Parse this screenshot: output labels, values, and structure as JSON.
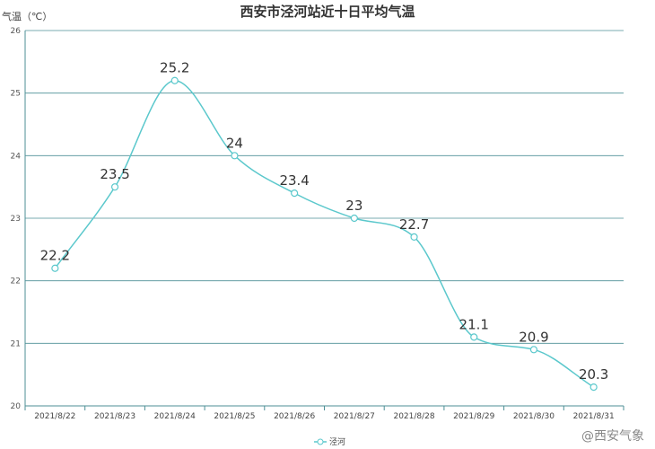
{
  "chart_data": {
    "type": "line",
    "title": "西安市泾河站近十日平均气温",
    "ylabel": "气温（℃）",
    "xlabel": "",
    "categories": [
      "2021/8/22",
      "2021/8/23",
      "2021/8/24",
      "2021/8/25",
      "2021/8/26",
      "2021/8/27",
      "2021/8/28",
      "2021/8/29",
      "2021/8/30",
      "2021/8/31"
    ],
    "series": [
      {
        "name": "泾河",
        "values": [
          22.2,
          23.5,
          25.2,
          24,
          23.4,
          23,
          22.7,
          21.1,
          20.9,
          20.3
        ]
      }
    ],
    "data_labels": [
      "22.2",
      "23.5",
      "25.2",
      "24",
      "23.4",
      "23",
      "22.7",
      "21.1",
      "20.9",
      "20.3"
    ],
    "ylim": [
      20,
      26
    ],
    "yticks": [
      20,
      21,
      22,
      23,
      24,
      25,
      26
    ],
    "grid": true,
    "legend": "bottom-center",
    "smooth": true
  },
  "colors": {
    "series": "#5bc8cc",
    "grid": "#4d8f96",
    "axis": "#4d8f96"
  },
  "watermark": "@西安气象"
}
